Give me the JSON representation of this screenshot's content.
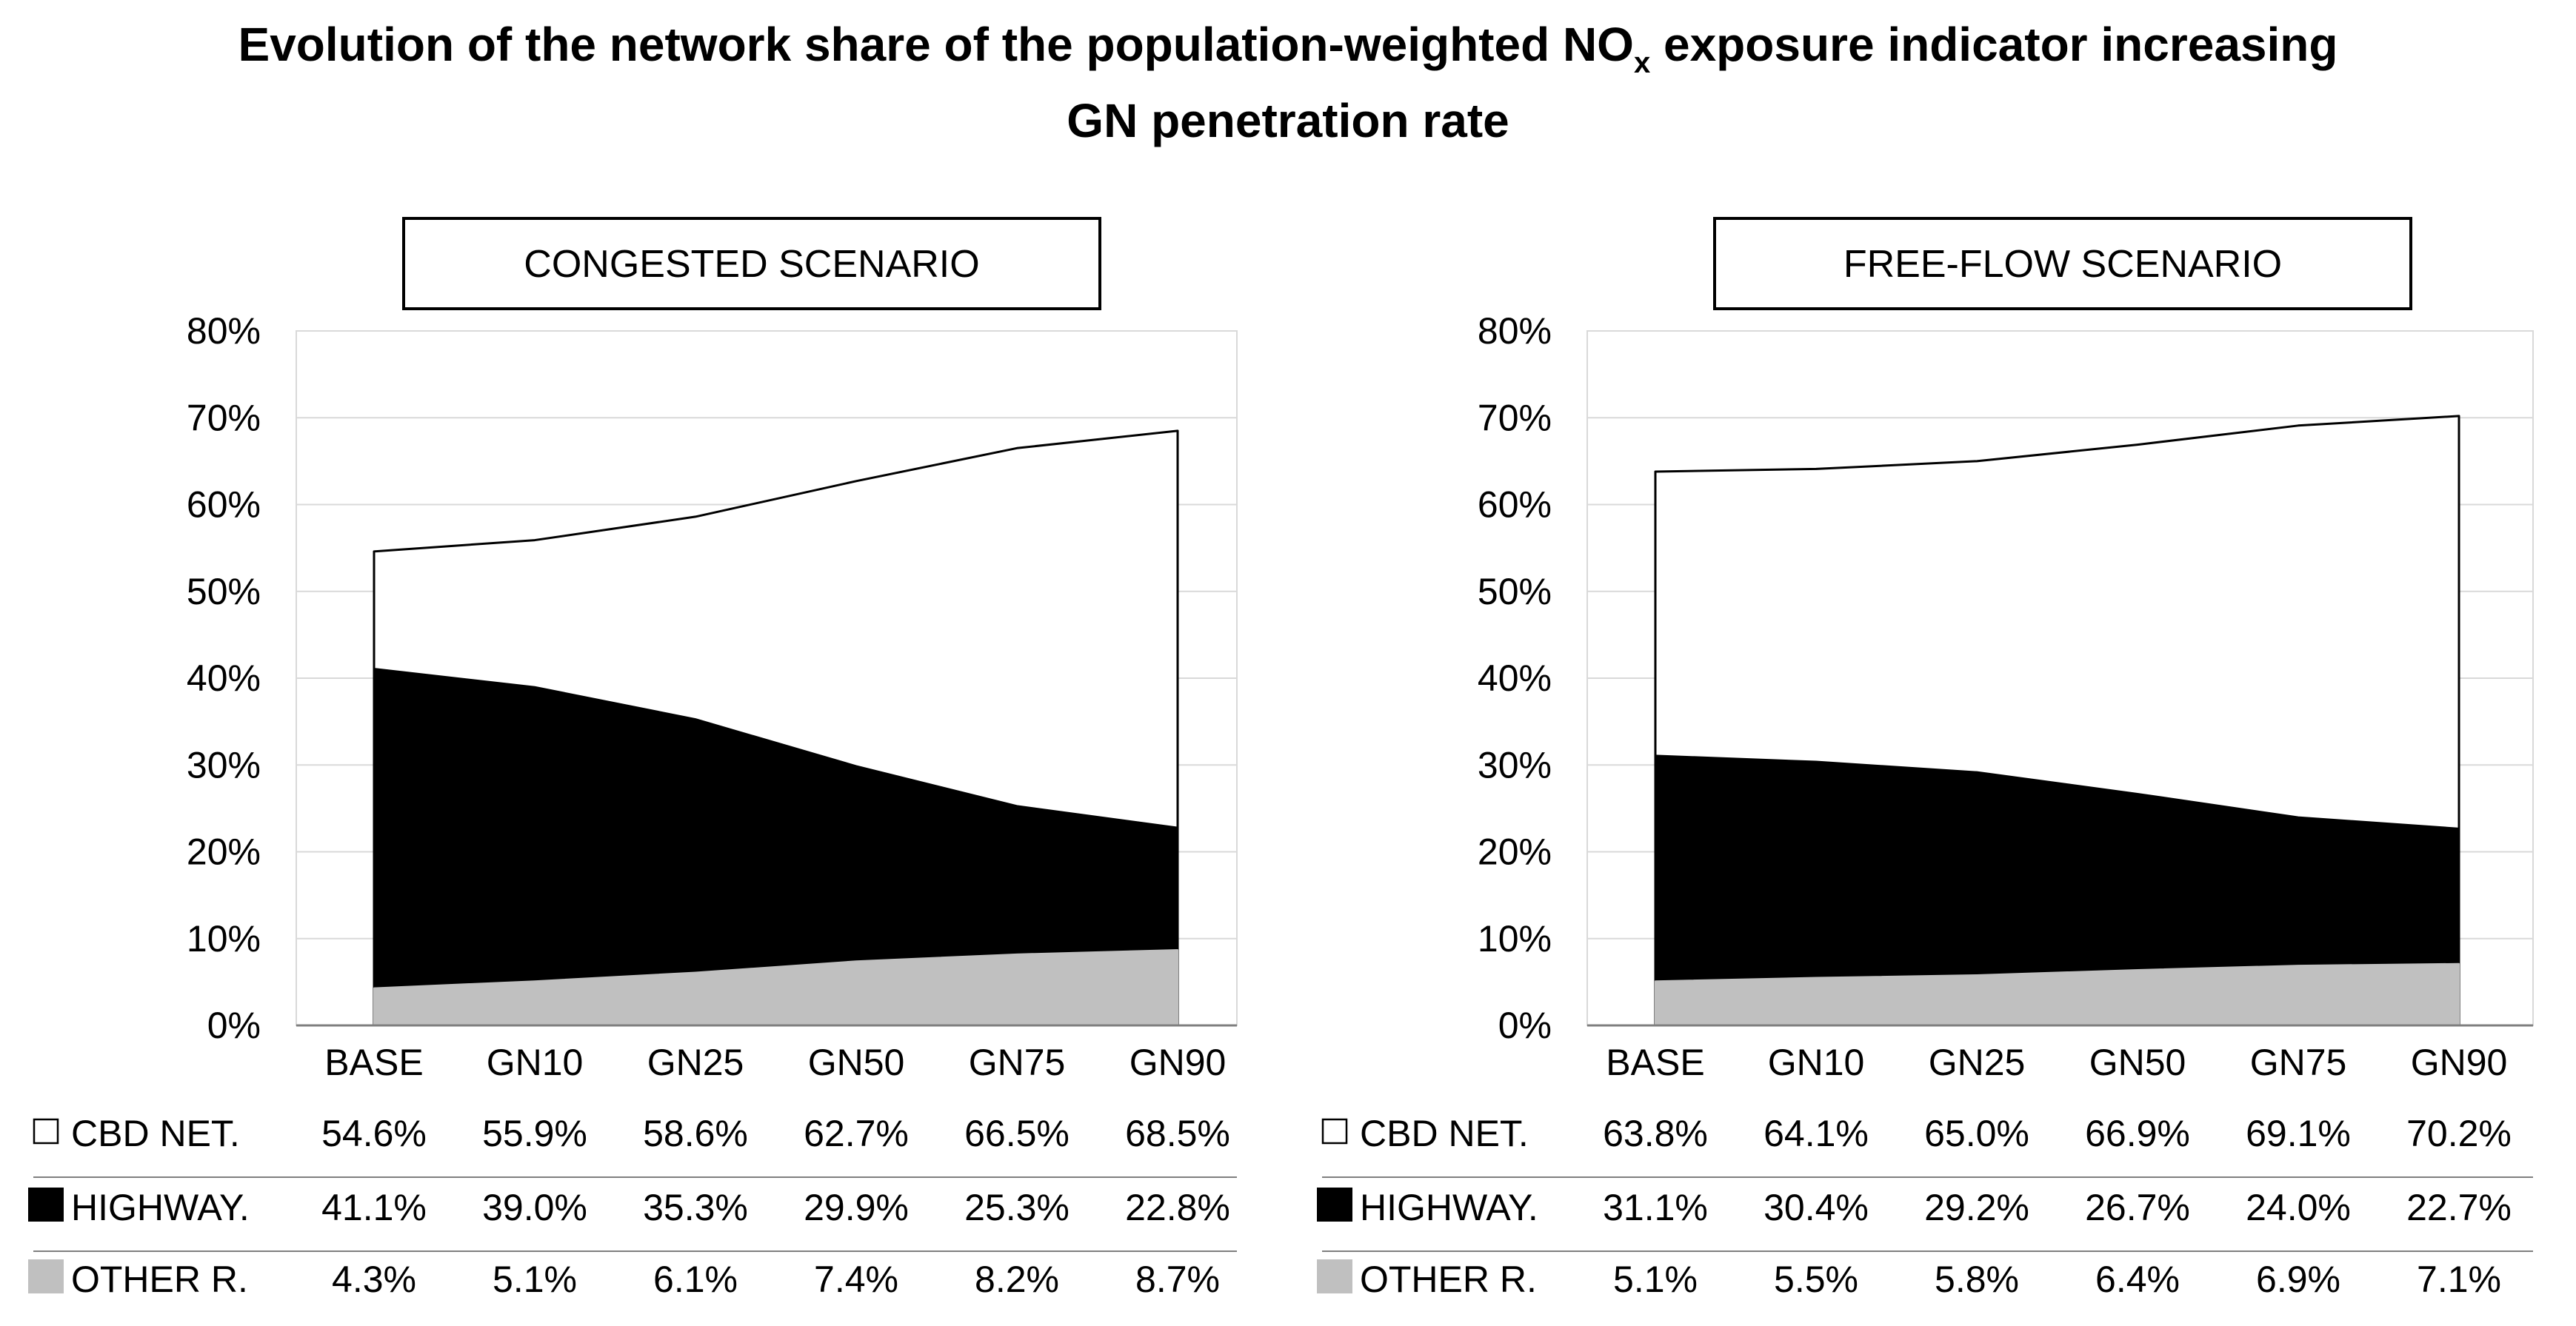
{
  "title": {
    "line1_pre": "Evolution of the network share of the population-weighted NO",
    "line1_sub": "x",
    "line1_post": " exposure indicator increasing",
    "line2": "GN penetration rate"
  },
  "colors": {
    "cbd": "#ffffff",
    "highway": "#000000",
    "other": "#c0c0c0",
    "grid": "#d9d9d9",
    "axis": "#7f7f7f",
    "text": "#000000"
  },
  "chart_data": [
    {
      "type": "area",
      "stacked": false,
      "title": "CONGESTED SCENARIO",
      "categories": [
        "BASE",
        "GN10",
        "GN25",
        "GN50",
        "GN75",
        "GN90"
      ],
      "yticks": [
        "0%",
        "10%",
        "20%",
        "30%",
        "40%",
        "50%",
        "60%",
        "70%",
        "80%"
      ],
      "ylim": [
        0,
        80
      ],
      "series": [
        {
          "name": "CBD NET.",
          "symbol": "☐",
          "values": [
            54.6,
            55.9,
            58.6,
            62.7,
            66.5,
            68.5
          ],
          "labels": [
            "54.6%",
            "55.9%",
            "58.6%",
            "62.7%",
            "66.5%",
            "68.5%"
          ]
        },
        {
          "name": "HIGHWAY.",
          "symbol": "■",
          "values": [
            41.1,
            39.0,
            35.3,
            29.9,
            25.3,
            22.8
          ],
          "labels": [
            "41.1%",
            "39.0%",
            "35.3%",
            "29.9%",
            "25.3%",
            "22.8%"
          ]
        },
        {
          "name": "OTHER R.",
          "symbol": "■",
          "values": [
            4.3,
            5.1,
            6.1,
            7.4,
            8.2,
            8.7
          ],
          "labels": [
            "4.3%",
            "5.1%",
            "6.1%",
            "7.4%",
            "8.2%",
            "8.7%"
          ]
        }
      ]
    },
    {
      "type": "area",
      "stacked": false,
      "title": "FREE-FLOW SCENARIO",
      "categories": [
        "BASE",
        "GN10",
        "GN25",
        "GN50",
        "GN75",
        "GN90"
      ],
      "yticks": [
        "0%",
        "10%",
        "20%",
        "30%",
        "40%",
        "50%",
        "60%",
        "70%",
        "80%"
      ],
      "ylim": [
        0,
        80
      ],
      "series": [
        {
          "name": "CBD NET.",
          "symbol": "☐",
          "values": [
            63.8,
            64.1,
            65.0,
            66.9,
            69.1,
            70.2
          ],
          "labels": [
            "63.8%",
            "64.1%",
            "65.0%",
            "66.9%",
            "69.1%",
            "70.2%"
          ]
        },
        {
          "name": "HIGHWAY.",
          "symbol": "■",
          "values": [
            31.1,
            30.4,
            29.2,
            26.7,
            24.0,
            22.7
          ],
          "labels": [
            "31.1%",
            "30.4%",
            "29.2%",
            "26.7%",
            "24.0%",
            "22.7%"
          ]
        },
        {
          "name": "OTHER R.",
          "symbol": "■",
          "values": [
            5.1,
            5.5,
            5.8,
            6.4,
            6.9,
            7.1
          ],
          "labels": [
            "5.1%",
            "5.5%",
            "5.8%",
            "6.4%",
            "6.9%",
            "7.1%"
          ]
        }
      ]
    }
  ]
}
